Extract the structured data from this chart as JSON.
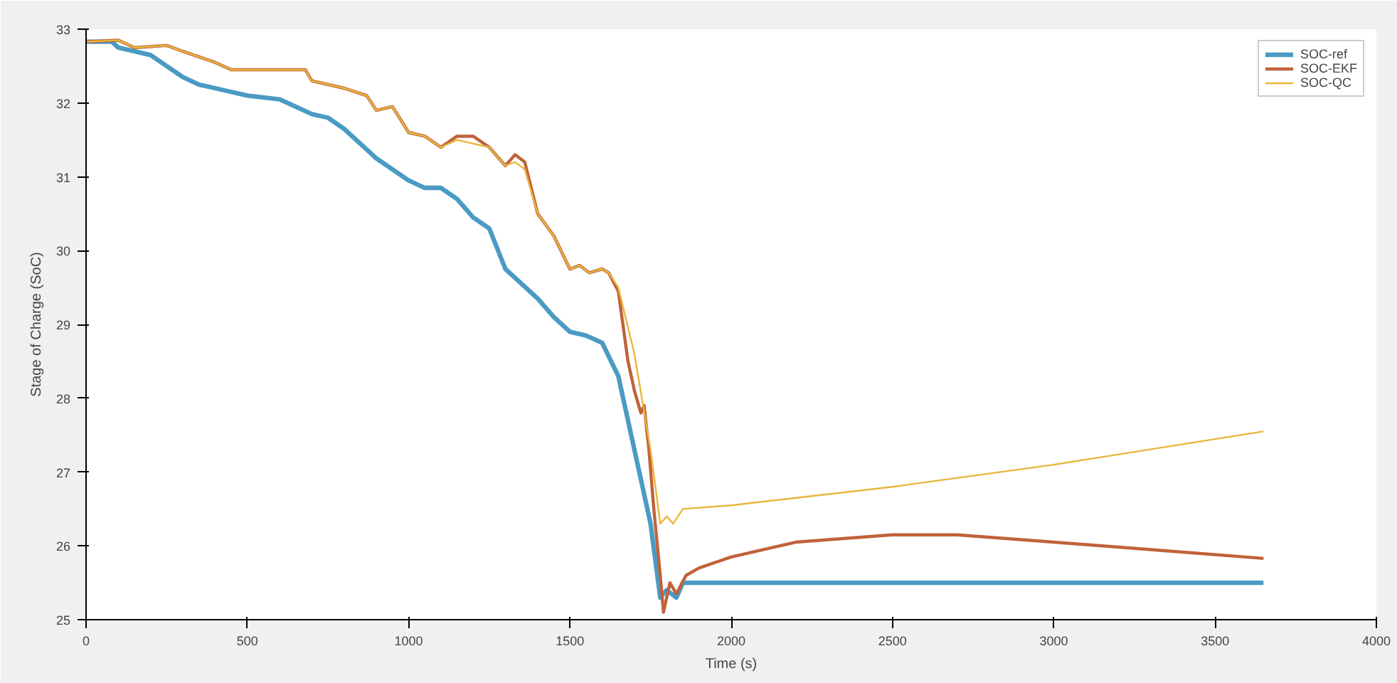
{
  "chart_data": {
    "type": "line",
    "xlabel": "Time (s)",
    "ylabel": "Stage of Charge (SoC)",
    "xlim": [
      0,
      4000
    ],
    "xticks": [
      0,
      500,
      1000,
      1500,
      2000,
      2500,
      3000,
      3500,
      4000
    ],
    "ylim": [
      25,
      33
    ],
    "yticks": [
      25,
      26,
      27,
      28,
      29,
      30,
      31,
      32,
      33
    ],
    "grid": false,
    "legend": "top right",
    "marker": "none",
    "line_style": "solid",
    "series": [
      {
        "name": "SOC-ref",
        "color": "#4a9bc4",
        "x": [
          0,
          80,
          100,
          150,
          200,
          250,
          300,
          350,
          400,
          500,
          600,
          700,
          750,
          800,
          850,
          900,
          1000,
          1050,
          1100,
          1150,
          1200,
          1250,
          1300,
          1400,
          1450,
          1500,
          1550,
          1600,
          1650,
          1700,
          1750,
          1780,
          1800,
          1830,
          1850,
          3650
        ],
        "values": [
          32.83,
          32.83,
          32.75,
          32.7,
          32.65,
          32.5,
          32.35,
          32.25,
          32.2,
          32.1,
          32.05,
          31.85,
          31.8,
          31.65,
          31.45,
          31.25,
          30.95,
          30.85,
          30.85,
          30.7,
          30.45,
          30.3,
          29.75,
          29.35,
          29.1,
          28.9,
          28.85,
          28.75,
          28.3,
          27.3,
          26.3,
          25.3,
          25.4,
          25.3,
          25.5,
          25.5
        ]
      },
      {
        "name": "SOC-EKF",
        "color": "#c0623a",
        "x": [
          0,
          100,
          150,
          250,
          300,
          400,
          450,
          500,
          600,
          680,
          700,
          800,
          870,
          900,
          950,
          1000,
          1050,
          1100,
          1150,
          1200,
          1250,
          1300,
          1330,
          1360,
          1400,
          1450,
          1500,
          1530,
          1560,
          1600,
          1620,
          1650,
          1680,
          1700,
          1720,
          1730,
          1745,
          1760,
          1780,
          1790,
          1810,
          1830,
          1860,
          1900,
          2000,
          2200,
          2500,
          2700,
          3000,
          3300,
          3650
        ],
        "values": [
          32.83,
          32.85,
          32.75,
          32.78,
          32.7,
          32.55,
          32.45,
          32.45,
          32.45,
          32.45,
          32.3,
          32.2,
          32.1,
          31.9,
          31.95,
          31.6,
          31.55,
          31.4,
          31.55,
          31.55,
          31.4,
          31.15,
          31.3,
          31.2,
          30.5,
          30.2,
          29.75,
          29.8,
          29.7,
          29.75,
          29.7,
          29.45,
          28.5,
          28.1,
          27.8,
          27.9,
          27.3,
          26.5,
          25.6,
          25.1,
          25.5,
          25.35,
          25.6,
          25.7,
          25.85,
          26.05,
          26.15,
          26.15,
          26.05,
          25.95,
          25.83
        ]
      },
      {
        "name": "SOC-QC",
        "color": "#e8b63c",
        "x": [
          0,
          100,
          150,
          250,
          300,
          400,
          450,
          500,
          600,
          680,
          700,
          800,
          870,
          900,
          950,
          1000,
          1050,
          1100,
          1150,
          1200,
          1250,
          1300,
          1330,
          1360,
          1400,
          1450,
          1500,
          1530,
          1560,
          1600,
          1620,
          1650,
          1700,
          1750,
          1780,
          1800,
          1820,
          1850,
          2000,
          2500,
          3000,
          3650
        ],
        "values": [
          32.83,
          32.85,
          32.75,
          32.78,
          32.7,
          32.55,
          32.45,
          32.45,
          32.45,
          32.45,
          32.3,
          32.2,
          32.1,
          31.9,
          31.95,
          31.6,
          31.55,
          31.4,
          31.5,
          31.45,
          31.4,
          31.15,
          31.2,
          31.1,
          30.5,
          30.2,
          29.75,
          29.8,
          29.7,
          29.75,
          29.7,
          29.5,
          28.6,
          27.3,
          26.3,
          26.4,
          26.3,
          26.5,
          26.55,
          26.8,
          27.1,
          27.55
        ]
      }
    ]
  }
}
